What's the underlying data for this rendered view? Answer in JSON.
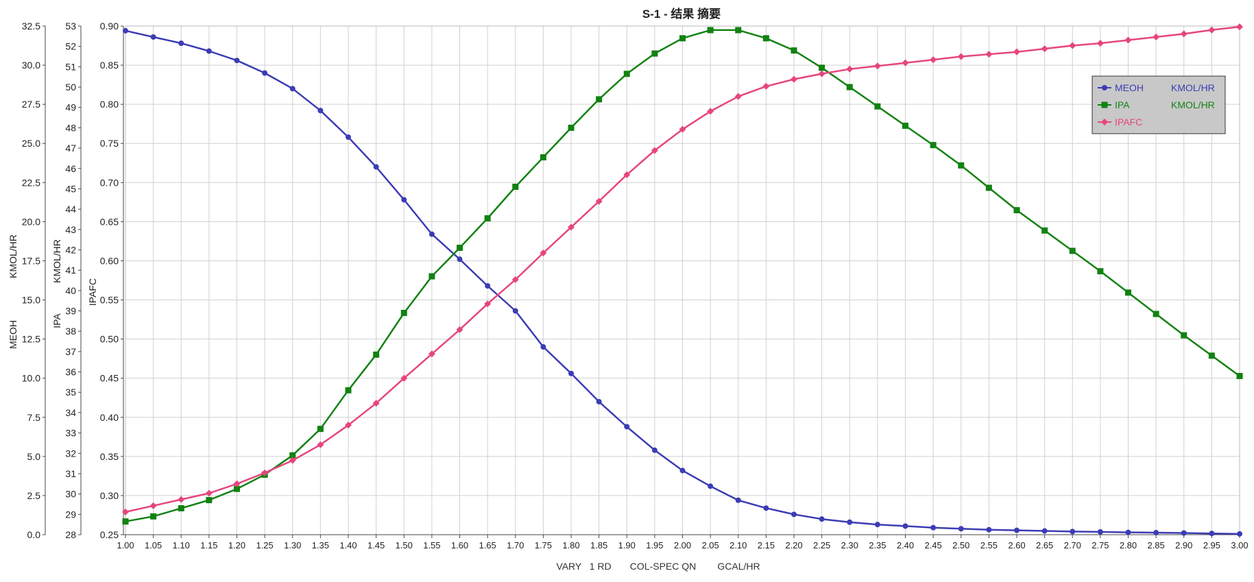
{
  "chart_data": {
    "type": "line",
    "title": "S-1 - 结果 摘要",
    "xlabel": "VARY   1 RD       COL-SPEC QN        GCAL/HR",
    "xlim": [
      1.0,
      3.0
    ],
    "x": [
      1.0,
      1.05,
      1.1,
      1.15,
      1.2,
      1.25,
      1.3,
      1.35,
      1.4,
      1.45,
      1.5,
      1.55,
      1.6,
      1.65,
      1.7,
      1.75,
      1.8,
      1.85,
      1.9,
      1.95,
      2.0,
      2.05,
      2.1,
      2.15,
      2.2,
      2.25,
      2.3,
      2.35,
      2.4,
      2.45,
      2.5,
      2.55,
      2.6,
      2.65,
      2.7,
      2.75,
      2.8,
      2.85,
      2.9,
      2.95,
      3.0
    ],
    "x_tick_labels": [
      "1.00",
      "1.05",
      "1.10",
      "1.15",
      "1.20",
      "1.25",
      "1.30",
      "1.35",
      "1.40",
      "1.45",
      "1.50",
      "1.55",
      "1.60",
      "1.65",
      "1.70",
      "1.75",
      "1.80",
      "1.85",
      "1.90",
      "1.95",
      "2.00",
      "2.05",
      "2.10",
      "2.15",
      "2.20",
      "2.25",
      "2.30",
      "2.35",
      "2.40",
      "2.45",
      "2.50",
      "2.55",
      "2.60",
      "2.65",
      "2.70",
      "2.75",
      "2.80",
      "2.85",
      "2.90",
      "2.95",
      "3.00"
    ],
    "grid": true,
    "legend_position": "top-right",
    "y_axes": [
      {
        "id": "meoh",
        "label_parts": [
          "MEOH",
          "KMOL/HR"
        ],
        "ylim": [
          0,
          32.5
        ],
        "ticks": [
          0,
          2.5,
          5,
          7.5,
          10,
          12.5,
          15,
          17.5,
          20,
          22.5,
          25,
          27.5,
          30,
          32.5
        ],
        "tick_labels": [
          "0.0",
          "2.5",
          "5.0",
          "7.5",
          "10.0",
          "12.5",
          "15.0",
          "17.5",
          "20.0",
          "22.5",
          "25.0",
          "27.5",
          "30.0",
          "32.5"
        ]
      },
      {
        "id": "ipa",
        "label_parts": [
          "IPA",
          "KMOL/HR"
        ],
        "ylim": [
          28,
          53
        ],
        "ticks": [
          28,
          29,
          30,
          31,
          32,
          33,
          34,
          35,
          36,
          37,
          38,
          39,
          40,
          41,
          42,
          43,
          44,
          45,
          46,
          47,
          48,
          49,
          50,
          51,
          52,
          53
        ],
        "tick_labels": [
          "28",
          "29",
          "30",
          "31",
          "32",
          "33",
          "34",
          "35",
          "36",
          "37",
          "38",
          "39",
          "40",
          "41",
          "42",
          "43",
          "44",
          "45",
          "46",
          "47",
          "48",
          "49",
          "50",
          "51",
          "52",
          "53"
        ]
      },
      {
        "id": "ipafc",
        "label_parts": [
          "IPAFC"
        ],
        "ylim": [
          0.25,
          0.9
        ],
        "ticks": [
          0.25,
          0.3,
          0.35,
          0.4,
          0.45,
          0.5,
          0.55,
          0.6,
          0.65,
          0.7,
          0.75,
          0.8,
          0.85,
          0.9
        ],
        "tick_labels": [
          "0.25",
          "0.30",
          "0.35",
          "0.40",
          "0.45",
          "0.50",
          "0.55",
          "0.60",
          "0.65",
          "0.70",
          "0.75",
          "0.80",
          "0.85",
          "0.90"
        ]
      }
    ],
    "series": [
      {
        "name": "MEOH",
        "unit": "KMOL/HR",
        "axis": "meoh",
        "color": "#3c3cb4",
        "marker": "circle",
        "values": [
          32.2,
          31.8,
          31.4,
          30.9,
          30.3,
          29.5,
          28.5,
          27.1,
          25.4,
          23.5,
          21.4,
          19.2,
          17.6,
          15.9,
          14.3,
          12.0,
          10.3,
          8.5,
          6.9,
          5.4,
          4.1,
          3.1,
          2.2,
          1.7,
          1.3,
          1.0,
          0.8,
          0.65,
          0.55,
          0.45,
          0.38,
          0.32,
          0.28,
          0.24,
          0.2,
          0.18,
          0.15,
          0.13,
          0.11,
          0.08,
          0.05
        ]
      },
      {
        "name": "IPA",
        "unit": "KMOL/HR",
        "axis": "ipa",
        "color": "#118211",
        "marker": "square",
        "values": [
          28.65,
          28.9,
          29.3,
          29.7,
          30.25,
          30.95,
          31.9,
          33.2,
          35.1,
          36.85,
          38.9,
          40.7,
          42.1,
          43.55,
          45.1,
          46.55,
          48.0,
          49.4,
          50.65,
          51.65,
          52.4,
          52.8,
          52.8,
          52.4,
          51.8,
          50.95,
          50.0,
          49.05,
          48.1,
          47.15,
          46.15,
          45.05,
          43.95,
          42.95,
          41.95,
          40.95,
          39.9,
          38.85,
          37.8,
          36.8,
          35.8
        ]
      },
      {
        "name": "IPAFC",
        "unit": "",
        "axis": "ipafc",
        "color": "#e6457e",
        "marker": "diamond",
        "values": [
          0.279,
          0.287,
          0.295,
          0.303,
          0.315,
          0.329,
          0.345,
          0.365,
          0.39,
          0.418,
          0.45,
          0.481,
          0.512,
          0.545,
          0.576,
          0.61,
          0.643,
          0.676,
          0.71,
          0.741,
          0.768,
          0.791,
          0.81,
          0.823,
          0.832,
          0.839,
          0.845,
          0.849,
          0.853,
          0.857,
          0.861,
          0.864,
          0.867,
          0.871,
          0.875,
          0.878,
          0.882,
          0.886,
          0.89,
          0.895,
          0.899
        ]
      }
    ]
  },
  "legend": {
    "entries": [
      {
        "name": "MEOH",
        "unit": "KMOL/HR",
        "color": "#3c3cb4",
        "marker": "circle"
      },
      {
        "name": "IPA",
        "unit": "KMOL/HR",
        "color": "#118211",
        "marker": "square"
      },
      {
        "name": "IPAFC",
        "unit": "",
        "color": "#e6457e",
        "marker": "diamond"
      }
    ],
    "background": "#c8c8c8"
  },
  "colors": {
    "grid": "#d0d0d0",
    "axis": "#444444",
    "text": "#222222"
  }
}
